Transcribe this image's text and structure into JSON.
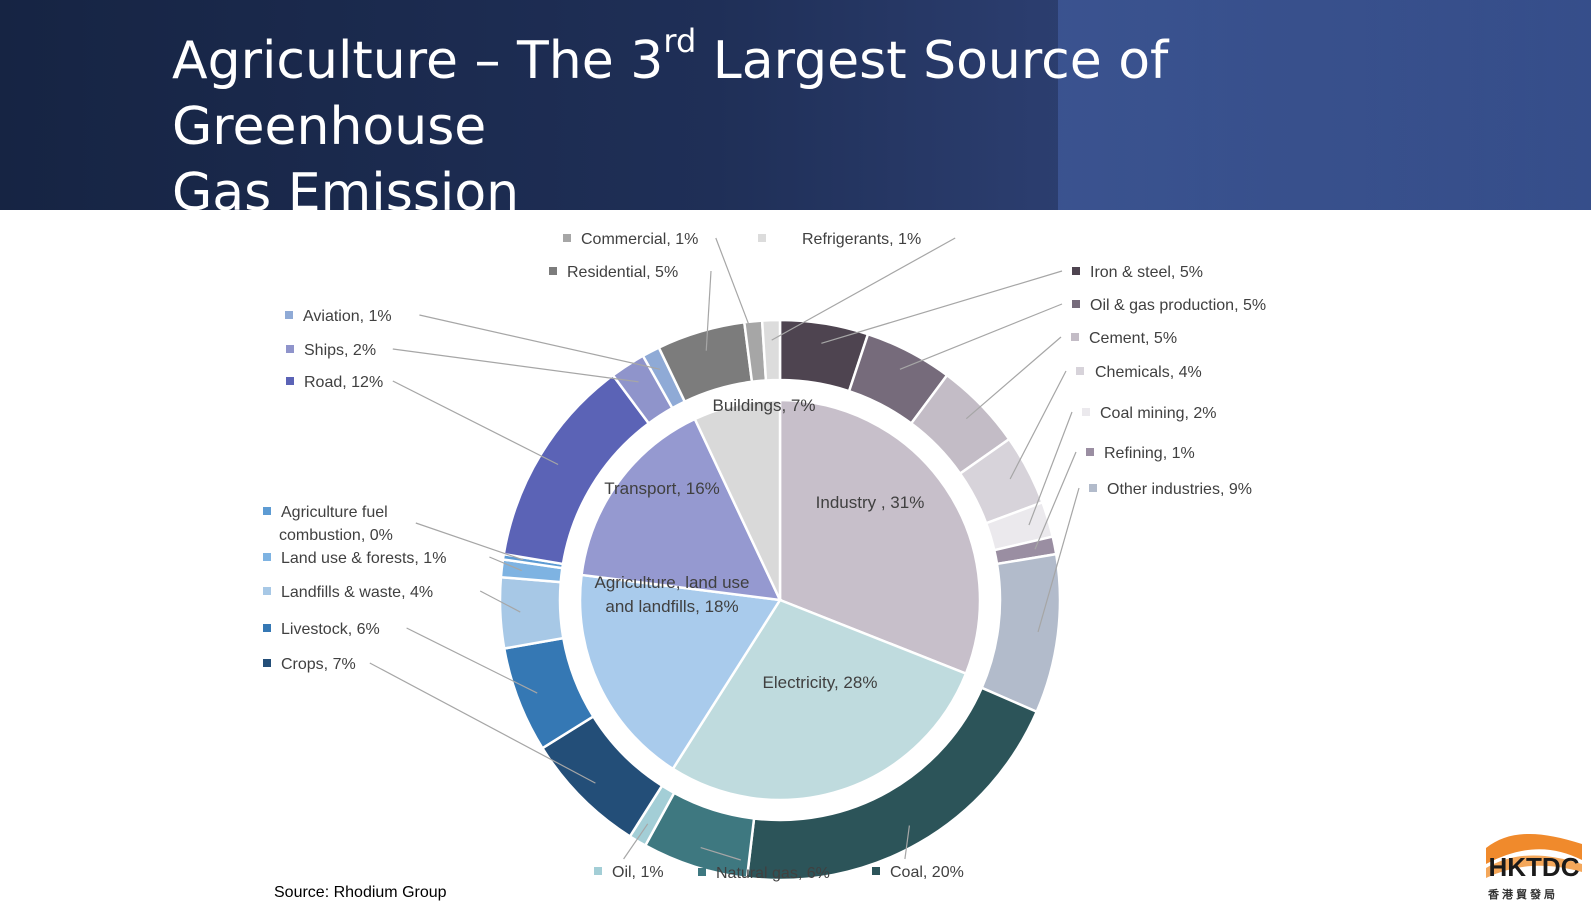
{
  "slide": {
    "title_main": "Agriculture – The 3",
    "title_sup": "rd",
    "title_rest": " Largest Source of Greenhouse",
    "title_line2": "Gas Emission",
    "source": "Source: Rhodium Group",
    "logo_text": "HKTDC",
    "logo_chinese": "香港貿發局"
  },
  "chart_data": {
    "type": "pie",
    "subtype": "sunburst-doughnut",
    "title": "",
    "inner_ring": [
      {
        "name": "Industry",
        "label": "Industry , 31%",
        "value": 31,
        "color": "#c7bfca"
      },
      {
        "name": "Electricity",
        "label": "Electricity, 28%",
        "value": 28,
        "color": "#bfdbde"
      },
      {
        "name": "Agriculture, land use and landfills",
        "label_lines": [
          "Agriculture, land use",
          "and landfills, 18%"
        ],
        "value": 18,
        "color": "#a9cbec"
      },
      {
        "name": "Transport",
        "label": "Transport, 16%",
        "value": 16,
        "color": "#9599d0"
      },
      {
        "name": "Buildings",
        "label": "Buildings, 7%",
        "value": 7,
        "color": "#d9d9d9"
      }
    ],
    "outer_ring": [
      {
        "name": "Iron & steel",
        "label": "Iron & steel, 5%",
        "value": 5,
        "color": "#4e4450"
      },
      {
        "name": "Oil & gas production",
        "label": "Oil & gas production, 5%",
        "value": 5,
        "color": "#766b7b"
      },
      {
        "name": "Cement",
        "label": "Cement, 5%",
        "value": 5,
        "color": "#c3bcc6"
      },
      {
        "name": "Chemicals",
        "label": "Chemicals, 4%",
        "value": 4,
        "color": "#d7d3da"
      },
      {
        "name": "Coal mining",
        "label": "Coal mining, 2%",
        "value": 2,
        "color": "#ebe9ed"
      },
      {
        "name": "Refining",
        "label": "Refining, 1%",
        "value": 1,
        "color": "#9a8ea2"
      },
      {
        "name": "Other industries",
        "label": "Other industries, 9%",
        "value": 9,
        "color": "#b2bbcb"
      },
      {
        "name": "Coal",
        "label": "Coal, 20%",
        "value": 20,
        "color": "#2c5459"
      },
      {
        "name": "Natural gas",
        "label": "Natural gas, 6%",
        "value": 6,
        "color": "#3e7880"
      },
      {
        "name": "Oil",
        "label": "Oil, 1%",
        "value": 1,
        "color": "#a3ced6"
      },
      {
        "name": "Crops",
        "label": "Crops, 7%",
        "value": 7,
        "color": "#234e78"
      },
      {
        "name": "Livestock",
        "label": "Livestock, 6%",
        "value": 6,
        "color": "#3578b4"
      },
      {
        "name": "Landfills & waste",
        "label": "Landfills & waste, 4%",
        "value": 4,
        "color": "#a7c8e6"
      },
      {
        "name": "Land use & forests",
        "label": "Land use & forests, 1%",
        "value": 1,
        "color": "#7eb3e2"
      },
      {
        "name": "Agriculture fuel combustion",
        "label_lines": [
          "Agriculture fuel",
          "combustion, 0%"
        ],
        "value": 0.3,
        "color": "#5d9bd3"
      },
      {
        "name": "Road",
        "label": "Road, 12%",
        "value": 12,
        "color": "#5b63b6"
      },
      {
        "name": "Ships",
        "label": "Ships, 2%",
        "value": 2,
        "color": "#8f94cb"
      },
      {
        "name": "Aviation",
        "label": "Aviation, 1%",
        "value": 1,
        "color": "#8faad6"
      },
      {
        "name": "Residential",
        "label": "Residential, 5%",
        "value": 5,
        "color": "#7c7c7c"
      },
      {
        "name": "Commercial",
        "label": "Commercial, 1%",
        "value": 1,
        "color": "#a6a6a6"
      },
      {
        "name": "Refrigerants",
        "label": "Refrigerants, 1%",
        "value": 1,
        "color": "#dcdcdc"
      }
    ]
  }
}
